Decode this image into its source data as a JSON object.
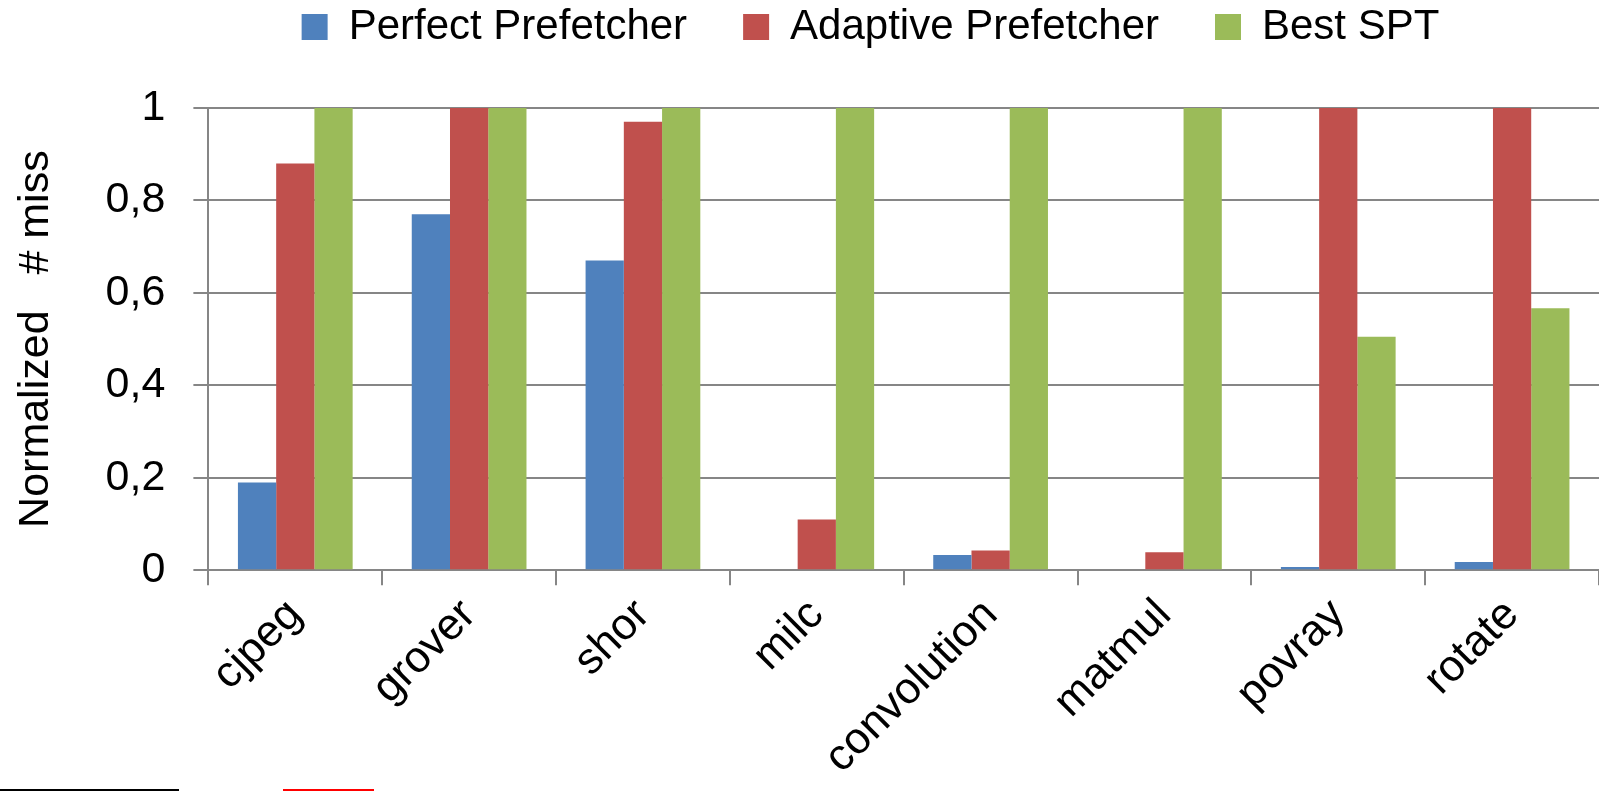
{
  "chart_data": {
    "type": "bar",
    "categories": [
      "cjpeg",
      "grover",
      "shor",
      "milc",
      "convolution",
      "matmul",
      "povray",
      "rotate"
    ],
    "series": [
      {
        "name": "Perfect Prefetcher",
        "color": "#4f81bd",
        "values": [
          0.19,
          0.77,
          0.67,
          0,
          0.033,
          0,
          0.007,
          0.018
        ]
      },
      {
        "name": "Adaptive Prefetcher",
        "color": "#c0504d",
        "values": [
          0.88,
          1,
          0.97,
          0.11,
          0.043,
          0.039,
          1,
          1
        ]
      },
      {
        "name": "Best SPT",
        "color": "#9bbb59",
        "values": [
          1,
          1,
          1,
          1,
          1,
          1,
          0.505,
          0.567
        ]
      }
    ],
    "ylabel": "Normalized   # miss",
    "ylim": [
      0,
      1
    ],
    "yticks": [
      0,
      {
        "value": 0.2,
        "label": "0,2"
      },
      {
        "value": 0.4,
        "label": "0,4"
      },
      {
        "value": 0.6,
        "label": "0,6"
      },
      {
        "value": 0.8,
        "label": "0,8"
      },
      1
    ],
    "grid": "y",
    "legend": "top"
  }
}
